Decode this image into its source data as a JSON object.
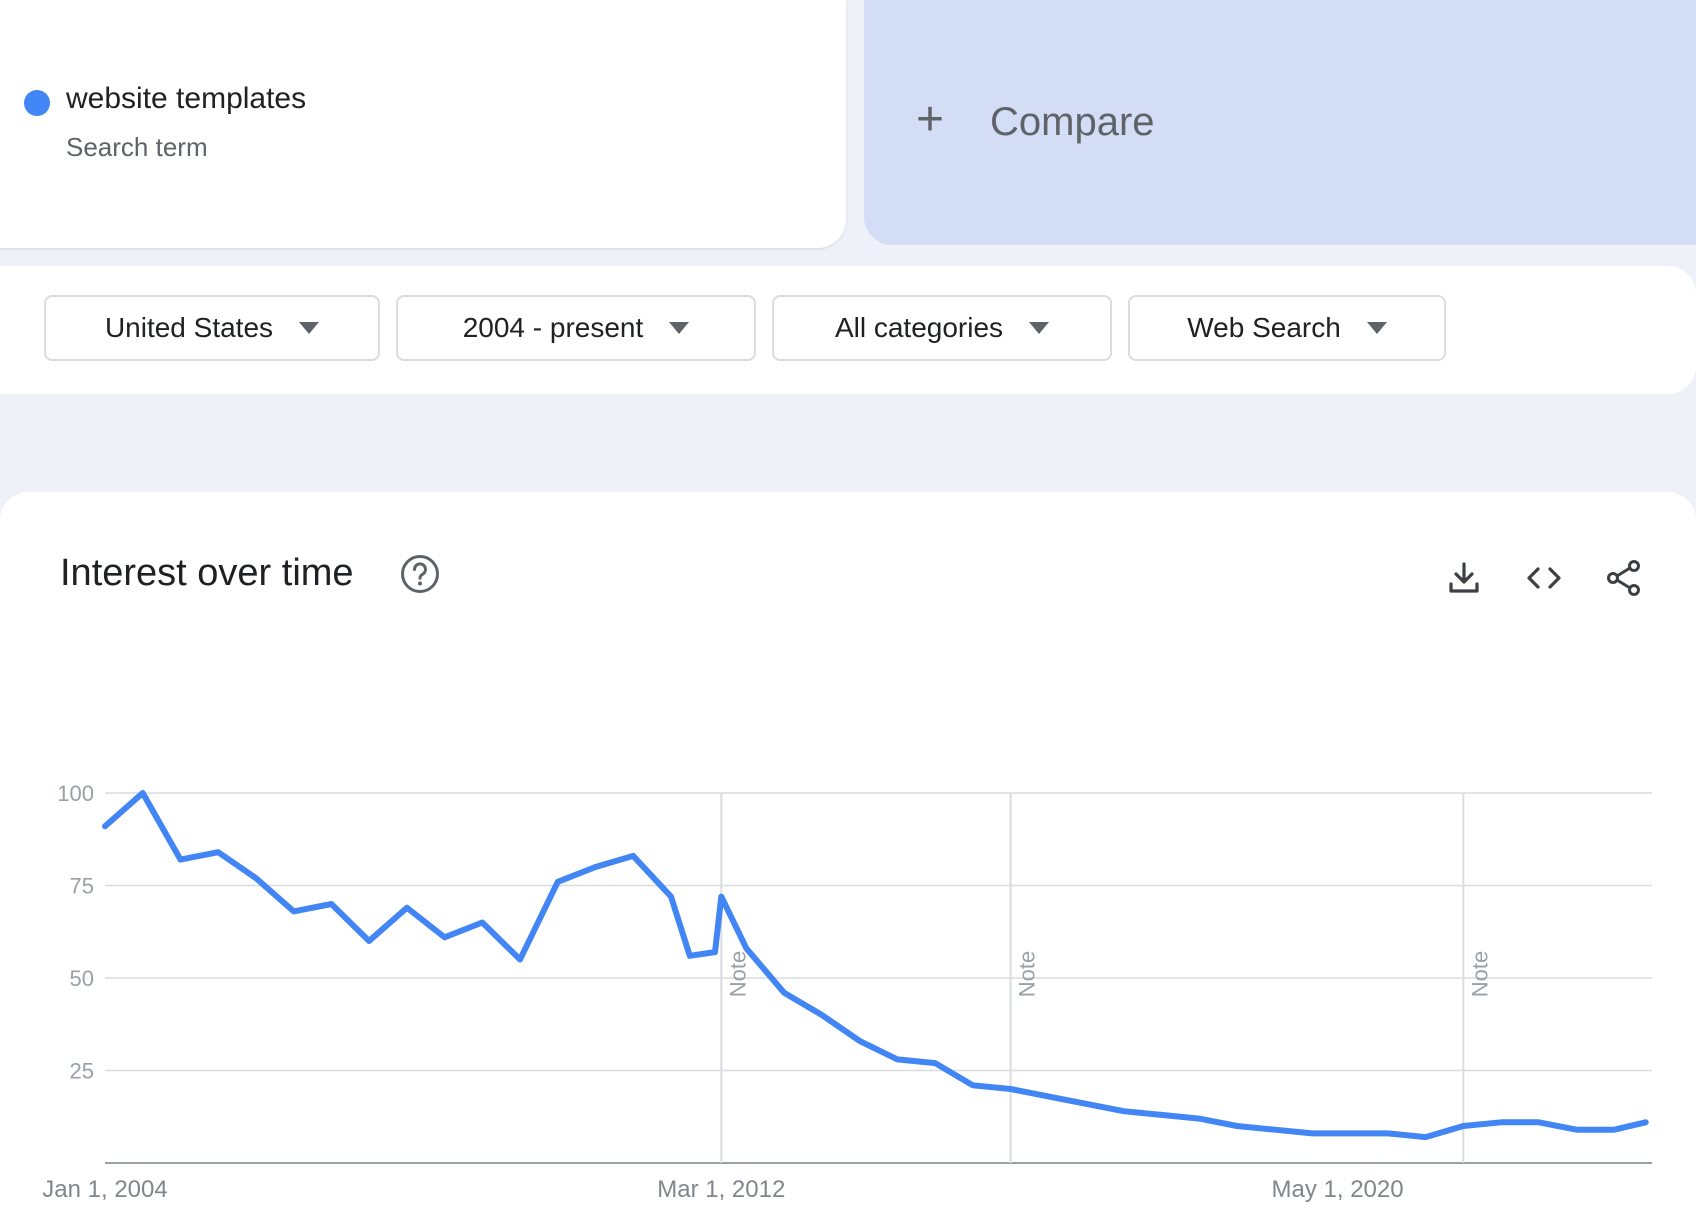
{
  "search_term": {
    "name": "website templates",
    "type": "Search term",
    "color": "#4285f4"
  },
  "compare": {
    "plus": "+",
    "label": "Compare"
  },
  "filters": {
    "region": "United States",
    "time_range": "2004 - present",
    "category": "All categories",
    "search_type": "Web Search"
  },
  "chart_section": {
    "title": "Interest over time",
    "icons": [
      "help-icon",
      "download-icon",
      "embed-icon",
      "share-icon"
    ]
  },
  "chart_data": {
    "type": "line",
    "title": "Interest over time",
    "xlabel": "",
    "ylabel": "",
    "ylim": [
      0,
      100
    ],
    "y_ticks": [
      "100",
      "75",
      "50",
      "25"
    ],
    "x_tick_labels": [
      "Jan 1, 2004",
      "Mar 1, 2012",
      "May 1, 2020"
    ],
    "x_tick_dates": [
      "2004-01",
      "2012-03",
      "2020-05"
    ],
    "notes": [
      {
        "date": "2012-03",
        "label": "Note"
      },
      {
        "date": "2016-01",
        "label": "Note"
      },
      {
        "date": "2022-01",
        "label": "Note"
      }
    ],
    "grid": true,
    "line_color": "#4285f4",
    "series": [
      {
        "x": [
          "2004-01",
          "2004-07",
          "2005-01",
          "2005-07",
          "2006-01",
          "2006-07",
          "2007-01",
          "2007-07",
          "2008-01",
          "2008-07",
          "2009-01",
          "2009-07",
          "2010-01",
          "2010-07",
          "2011-01",
          "2011-07",
          "2011-10",
          "2012-02",
          "2012-03",
          "2012-07",
          "2013-01",
          "2013-07",
          "2014-01",
          "2014-07",
          "2015-01",
          "2015-07",
          "2016-01",
          "2016-07",
          "2017-01",
          "2017-07",
          "2018-01",
          "2018-07",
          "2019-01",
          "2019-07",
          "2020-01",
          "2020-07",
          "2021-01",
          "2021-07",
          "2022-01",
          "2022-07",
          "2023-01",
          "2023-07",
          "2024-01",
          "2024-06"
        ],
        "y": [
          91,
          100,
          82,
          84,
          77,
          68,
          70,
          60,
          69,
          61,
          65,
          55,
          76,
          80,
          83,
          72,
          56,
          57,
          72,
          58,
          46,
          40,
          33,
          28,
          27,
          21,
          20,
          18,
          16,
          14,
          13,
          12,
          10,
          9,
          8,
          8,
          8,
          7,
          10,
          11,
          11,
          9,
          9,
          11
        ]
      }
    ]
  }
}
